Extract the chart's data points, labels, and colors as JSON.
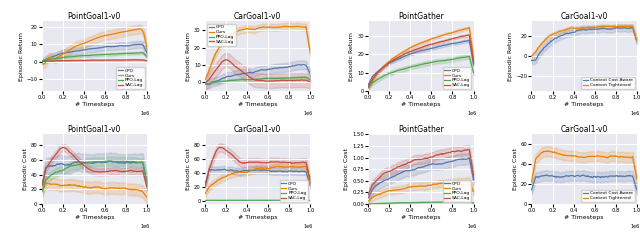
{
  "titles_row1": [
    "PointGoal1-v0",
    "CarGoal1-v0",
    "PointGather",
    "CarGoal1-v0"
  ],
  "ylabel_top": "Episodic Return",
  "ylabel_bot": "Episodic Cost",
  "xlabel": "# Timesteps",
  "colors": {
    "CPO": "#5878a8",
    "Ours": "#e8820a",
    "PPO-Lag": "#52a652",
    "SAC-Lag": "#c44e42",
    "Context Cost Aware": "#5878a8",
    "Context Tightened": "#e8820a"
  },
  "legend_labels_main": [
    "CPO",
    "Ours",
    "PPO-Lag",
    "SAC-Lag"
  ],
  "legend_labels_context": [
    "Context Cost Aware",
    "Context Tightened"
  ],
  "bg_color": "#e8e8f0",
  "grid_color": "white",
  "legend_positions": {
    "pg1_ret": "lower right",
    "cg1_ret": "upper left",
    "pg_ret": "lower right",
    "cg2_ret": "lower right",
    "pg1_cost": "upper right",
    "cg1_cost": "lower right",
    "pg_cost": "lower right",
    "cg2_cost": "lower right"
  }
}
